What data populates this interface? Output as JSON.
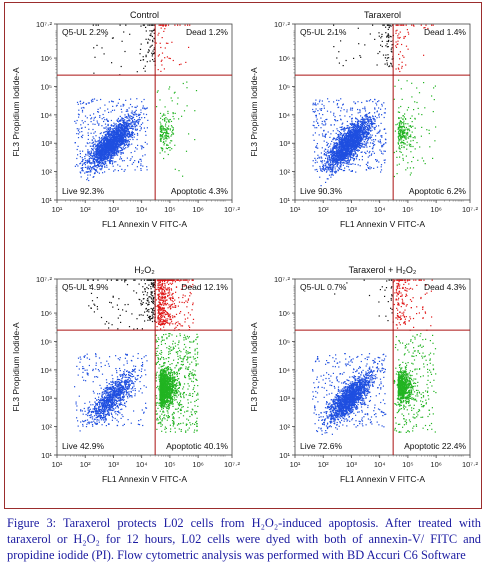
{
  "figure": {
    "caption": "Figure 3:  Taraxerol protects L02 cells from H₂O₂-induced apoptosis. After treated with taraxerol or H₂O₂ for 12 hours, L02 cells were dyed with both of annexin-V/ FITC and propidine iodide (PI). Flow cytometric analysis was performed with BD Accuri C6 Software",
    "border_color": "#9b2d2d",
    "caption_color": "#1a1aa0"
  },
  "colors": {
    "live": "#1f4fe0",
    "ul": "#111111",
    "dead": "#e01818",
    "apoptotic": "#22b422",
    "gate": "#aa1111"
  },
  "chart_data": [
    {
      "type": "scatter",
      "title": "Control",
      "xlabel": "FL1 Annexin V FITC-A",
      "ylabel": "FL3 Propidium Iodide-A",
      "x_scale": "log",
      "y_scale": "log",
      "xlim": [
        10,
        15848932
      ],
      "ylim": [
        10,
        15848932
      ],
      "x_ticks": [
        "10¹",
        "10²",
        "10³",
        "10⁴",
        "10⁵",
        "10⁶",
        "10⁷·²"
      ],
      "y_ticks": [
        "10¹",
        "10²",
        "10³",
        "10⁴",
        "10⁵",
        "10⁶",
        "10⁷·²"
      ],
      "gate": {
        "x": 30000,
        "y": 250000
      },
      "quadrants": {
        "ul": {
          "label": "Q5-UL 2.2%",
          "pct": 2.2
        },
        "ur": {
          "label": "Dead 1.2%",
          "pct": 1.2
        },
        "ll": {
          "label": "Live 92.3%",
          "pct": 92.3
        },
        "lr": {
          "label": "Apoptotic 4.3%",
          "pct": 4.3
        }
      }
    },
    {
      "type": "scatter",
      "title": "Taraxerol",
      "xlabel": "FL1 Annexin V FITC-A",
      "ylabel": "FL3 Propidium Iodide-A",
      "x_scale": "log",
      "y_scale": "log",
      "xlim": [
        10,
        15848932
      ],
      "ylim": [
        10,
        15848932
      ],
      "x_ticks": [
        "10¹",
        "10²",
        "10³",
        "10⁴",
        "10⁵",
        "10⁶",
        "10⁷·²"
      ],
      "y_ticks": [
        "10¹",
        "10²",
        "10³",
        "10⁴",
        "10⁵",
        "10⁶",
        "10⁷·²"
      ],
      "gate": {
        "x": 30000,
        "y": 250000
      },
      "quadrants": {
        "ul": {
          "label": "Q5-UL 2.1%",
          "pct": 2.1
        },
        "ur": {
          "label": "Dead 1.4%",
          "pct": 1.4
        },
        "ll": {
          "label": "Live 90.3%",
          "pct": 90.3
        },
        "lr": {
          "label": "Apoptotic 6.2%",
          "pct": 6.2
        }
      }
    },
    {
      "type": "scatter",
      "title": "H₂O₂",
      "xlabel": "FL1 Annexin V FITC-A",
      "ylabel": "FL3 Propidium Iodide-A",
      "x_scale": "log",
      "y_scale": "log",
      "xlim": [
        10,
        15848932
      ],
      "ylim": [
        10,
        15848932
      ],
      "x_ticks": [
        "10¹",
        "10²",
        "10³",
        "10⁴",
        "10⁵",
        "10⁶",
        "10⁷·²"
      ],
      "y_ticks": [
        "10¹",
        "10²",
        "10³",
        "10⁴",
        "10⁵",
        "10⁶",
        "10⁷·²"
      ],
      "gate": {
        "x": 30000,
        "y": 250000
      },
      "quadrants": {
        "ul": {
          "label": "Q5-UL 4.9%",
          "pct": 4.9
        },
        "ur": {
          "label": "Dead 12.1%",
          "pct": 12.1
        },
        "ll": {
          "label": "Live 42.9%",
          "pct": 42.9
        },
        "lr": {
          "label": "Apoptotic 40.1%",
          "pct": 40.1
        }
      }
    },
    {
      "type": "scatter",
      "title": "Taraxerol + H₂O₂",
      "xlabel": "FL1 Annexin V FITC-A",
      "ylabel": "FL3 Propidium Iodide-A",
      "x_scale": "log",
      "y_scale": "log",
      "xlim": [
        10,
        15848932
      ],
      "ylim": [
        10,
        15848932
      ],
      "x_ticks": [
        "10¹",
        "10²",
        "10³",
        "10⁴",
        "10⁵",
        "10⁶",
        "10⁷·²"
      ],
      "y_ticks": [
        "10¹",
        "10²",
        "10³",
        "10⁴",
        "10⁵",
        "10⁶",
        "10⁷·²"
      ],
      "gate": {
        "x": 30000,
        "y": 250000
      },
      "quadrants": {
        "ul": {
          "label": "Q5-UL 0.7%",
          "pct": 0.7
        },
        "ur": {
          "label": "Dead 4.3%",
          "pct": 4.3
        },
        "ll": {
          "label": "Live 72.6%",
          "pct": 72.6
        },
        "lr": {
          "label": "Apoptotic 22.4%",
          "pct": 22.4
        }
      }
    }
  ]
}
